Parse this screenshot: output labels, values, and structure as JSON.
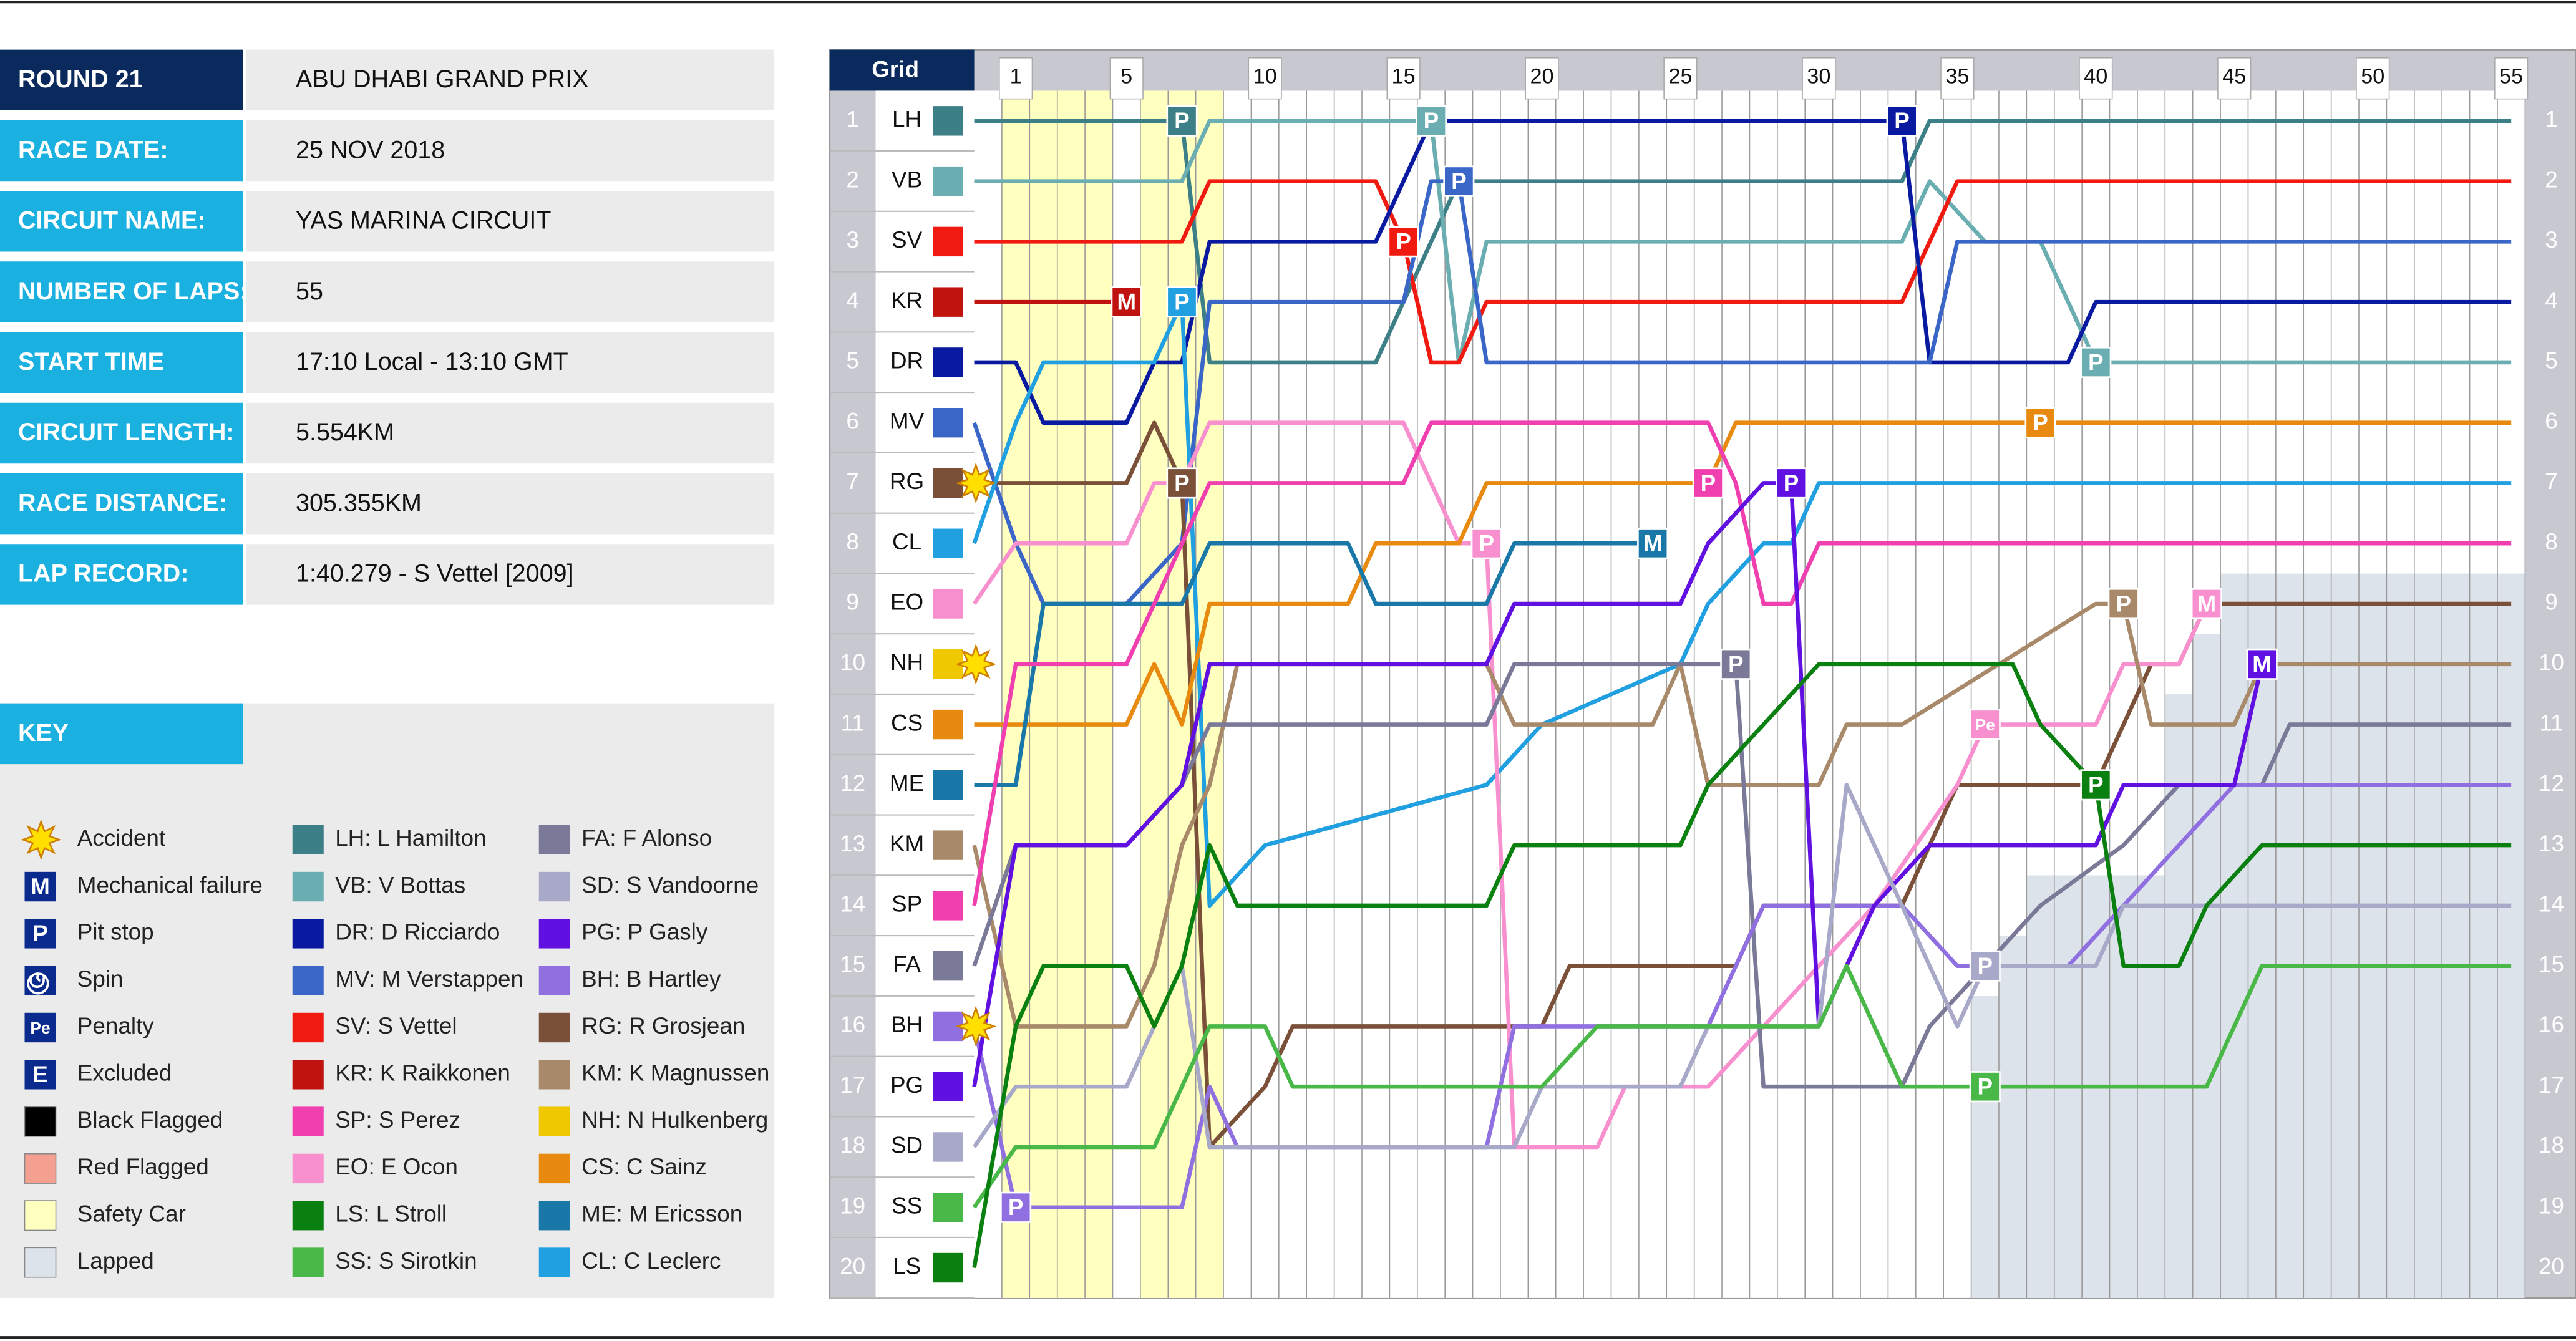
{
  "info": [
    {
      "label": "ROUND 21",
      "value": "ABU DHABI GRAND PRIX"
    },
    {
      "label": "RACE DATE:",
      "value": "25 NOV 2018"
    },
    {
      "label": "CIRCUIT NAME:",
      "value": "YAS MARINA CIRCUIT"
    },
    {
      "label": "NUMBER OF LAPS:",
      "value": "55"
    },
    {
      "label": "START TIME",
      "value": "17:10 Local - 13:10 GMT"
    },
    {
      "label": "CIRCUIT LENGTH:",
      "value": "5.554KM"
    },
    {
      "label": "RACE DISTANCE:",
      "value": "305.355KM"
    },
    {
      "label": "LAP RECORD:",
      "value": "1:40.279 - S Vettel [2009]"
    }
  ],
  "key": {
    "title": "KEY",
    "items": [
      {
        "label": "Accident"
      },
      {
        "symbol": "M",
        "label": "Mechanical failure"
      },
      {
        "symbol": "P",
        "label": "Pit stop"
      },
      {
        "label": "Spin"
      },
      {
        "symbol": "Pe",
        "label": "Penalty"
      },
      {
        "symbol": "E",
        "label": "Excluded"
      },
      {
        "label": "Black Flagged"
      },
      {
        "label": "Red Flagged"
      },
      {
        "label": "Safety Car"
      },
      {
        "label": "Lapped"
      }
    ]
  },
  "chart_data": {
    "type": "line",
    "grid_title": "Grid",
    "xlim": [
      -0.5,
      55.5
    ],
    "xticks": [
      1,
      5,
      10,
      15,
      20,
      25,
      30,
      35,
      40,
      45,
      50,
      55
    ],
    "ylim": [
      20.5,
      0.5
    ],
    "yticks": [
      1,
      2,
      3,
      4,
      5,
      6,
      7,
      8,
      9,
      10,
      11,
      12,
      13,
      14,
      15,
      16,
      17,
      18,
      19,
      20
    ],
    "safety_car": [
      [
        0.5,
        4.5
      ],
      [
        5.5,
        8.5
      ]
    ],
    "lapped": {
      "x": [
        35.5,
        36.5,
        37.5,
        42.5,
        43.5,
        44.5
      ],
      "values": [
        15.5,
        14.5,
        13.5,
        10.5,
        9.5,
        8.5
      ]
    },
    "series": [
      {
        "name": "LH",
        "label": "LH: L Hamilton",
        "color": "#3d7f86",
        "x": [
          0,
          7,
          8,
          14,
          15,
          16,
          17,
          33,
          34,
          55
        ],
        "values": [
          1,
          1,
          5,
          5,
          4,
          3,
          2,
          2,
          1,
          1
        ]
      },
      {
        "name": "VB",
        "label": "VB: V Bottas",
        "color": "#6aaeb2",
        "x": [
          0,
          7,
          8,
          16,
          17,
          18,
          33,
          34,
          36,
          38,
          39,
          40,
          55
        ],
        "values": [
          2,
          2,
          1,
          1,
          5,
          3,
          3,
          2,
          3,
          3,
          4,
          5,
          5
        ]
      },
      {
        "name": "SV",
        "label": "SV: S Vettel",
        "color": "#f01a10",
        "x": [
          0,
          7,
          8,
          14,
          15,
          16,
          17,
          18,
          33,
          34,
          35,
          55
        ],
        "values": [
          3,
          3,
          2,
          2,
          3,
          5,
          5,
          4,
          4,
          3,
          2,
          2
        ]
      },
      {
        "name": "KR",
        "label": "KR: K Raikkonen",
        "color": "#c0120e",
        "x": [
          0,
          5
        ],
        "values": [
          4,
          4
        ]
      },
      {
        "name": "DR",
        "label": "DR: D Ricciardo",
        "color": "#0a1aa0",
        "x": [
          0,
          1,
          2,
          5,
          6,
          7,
          8,
          14,
          15,
          16,
          33,
          34,
          39,
          40,
          55
        ],
        "values": [
          5,
          5,
          6,
          6,
          5,
          5,
          3,
          3,
          2,
          1,
          1,
          5,
          5,
          4,
          4
        ]
      },
      {
        "name": "MV",
        "label": "MV: M Verstappen",
        "color": "#3a66c8",
        "x": [
          0,
          1,
          2,
          5,
          7,
          8,
          15,
          16,
          17,
          18,
          34,
          35,
          55
        ],
        "values": [
          6,
          8,
          9,
          9,
          8,
          4,
          4,
          2,
          2,
          5,
          5,
          3,
          3
        ]
      },
      {
        "name": "RG",
        "label": "RG: R Grosjean",
        "color": "#7a5038",
        "x": [
          0,
          5,
          6,
          7,
          8,
          10,
          11,
          20,
          21,
          27,
          28,
          33,
          34,
          35,
          40,
          41,
          42,
          43,
          44,
          55
        ],
        "values": [
          7,
          7,
          6,
          7,
          18,
          17,
          16,
          16,
          15,
          15,
          14,
          14,
          13,
          12,
          12,
          11,
          10,
          10,
          9,
          9
        ]
      },
      {
        "name": "CL",
        "label": "CL: C Leclerc",
        "color": "#20a0e0",
        "x": [
          0,
          1,
          2,
          6,
          7,
          8,
          10,
          18,
          20,
          25,
          26,
          28,
          29,
          30,
          55
        ],
        "values": [
          8,
          6,
          5,
          5,
          4,
          14,
          13,
          12,
          11,
          10,
          9,
          8,
          8,
          7,
          7
        ]
      },
      {
        "name": "EO",
        "label": "EO: E Ocon",
        "color": "#f890d0",
        "x": [
          0,
          1,
          5,
          6,
          7,
          8,
          15,
          16,
          17,
          18,
          19,
          22,
          23,
          26,
          28,
          30,
          32,
          35,
          36,
          40,
          41,
          43,
          44
        ],
        "values": [
          9,
          8,
          8,
          7,
          7,
          6,
          6,
          7,
          8,
          8,
          18,
          18,
          17,
          17,
          16,
          15,
          14,
          12,
          11,
          11,
          10,
          10,
          9
        ]
      },
      {
        "name": "NH",
        "label": "NH: N Hulkenberg",
        "color": "#f0c800",
        "x": [
          0
        ],
        "values": [
          10
        ]
      },
      {
        "name": "CS",
        "label": "CS: C Sainz",
        "color": "#e88a10",
        "x": [
          0,
          5,
          6,
          7,
          8,
          13,
          14,
          17,
          18,
          26,
          27,
          55
        ],
        "values": [
          11,
          11,
          10,
          11,
          9,
          9,
          8,
          8,
          7,
          7,
          6,
          6
        ]
      },
      {
        "name": "ME",
        "label": "ME: M Ericsson",
        "color": "#1a78a8",
        "x": [
          0,
          1,
          2,
          7,
          8,
          13,
          14,
          18,
          19,
          24
        ],
        "values": [
          12,
          12,
          9,
          9,
          8,
          8,
          9,
          9,
          8,
          8
        ]
      },
      {
        "name": "KM",
        "label": "KM: K Magnussen",
        "color": "#a88a6a",
        "x": [
          0,
          1,
          5,
          6,
          7,
          8,
          9,
          18,
          19,
          24,
          25,
          26,
          30,
          31,
          33,
          40,
          41,
          42,
          45,
          46,
          55
        ],
        "values": [
          13,
          16,
          16,
          15,
          13,
          12,
          10,
          10,
          11,
          11,
          10,
          12,
          12,
          11,
          11,
          9,
          9,
          11,
          11,
          10,
          10
        ]
      },
      {
        "name": "SP",
        "label": "SP: S Perez",
        "color": "#f040b0",
        "x": [
          0,
          1,
          5,
          6,
          7,
          8,
          15,
          16,
          26,
          27,
          28,
          29,
          30,
          55
        ],
        "values": [
          14,
          10,
          10,
          9,
          8,
          7,
          7,
          6,
          6,
          7,
          9,
          9,
          8,
          8
        ]
      },
      {
        "name": "FA",
        "label": "FA: F Alonso",
        "color": "#7a7a98",
        "x": [
          0,
          1,
          5,
          7,
          8,
          18,
          19,
          26,
          27,
          28,
          33,
          34,
          36,
          38,
          41,
          43,
          46,
          47,
          55
        ],
        "values": [
          15,
          13,
          13,
          12,
          11,
          11,
          10,
          10,
          10,
          17,
          17,
          16,
          15,
          14,
          13,
          12,
          12,
          11,
          11
        ]
      },
      {
        "name": "BH",
        "label": "BH: B Hartley",
        "color": "#9070e0",
        "x": [
          0,
          1,
          7,
          8,
          9,
          18,
          19,
          26,
          28,
          33,
          35,
          39,
          41,
          43,
          45,
          55
        ],
        "values": [
          16,
          19,
          19,
          17,
          18,
          18,
          16,
          16,
          14,
          14,
          15,
          15,
          14,
          13,
          12,
          12
        ]
      },
      {
        "name": "PG",
        "label": "PG: P Gasly",
        "color": "#6010e0",
        "x": [
          0,
          1,
          5,
          7,
          8,
          18,
          19,
          25,
          26,
          28,
          29,
          30,
          32,
          34,
          40,
          41,
          45,
          46
        ],
        "values": [
          17,
          13,
          13,
          12,
          10,
          10,
          9,
          9,
          8,
          7,
          7,
          16,
          14,
          13,
          13,
          12,
          12,
          10
        ]
      },
      {
        "name": "SD",
        "label": "SD: S Vandoorne",
        "color": "#a8a8c8",
        "x": [
          0,
          1,
          5,
          7,
          8,
          19,
          20,
          25,
          26,
          30,
          31,
          32,
          33,
          34,
          35,
          36,
          40,
          41,
          55
        ],
        "values": [
          18,
          17,
          17,
          15,
          18,
          18,
          17,
          17,
          16,
          16,
          12,
          13,
          14,
          15,
          16,
          15,
          15,
          14,
          14
        ]
      },
      {
        "name": "SS",
        "label": "SS: S Sirotkin",
        "color": "#4ab848",
        "x": [
          0,
          1,
          6,
          7,
          8,
          10,
          11,
          20,
          22,
          30,
          31,
          32,
          33,
          36,
          44,
          46,
          55
        ],
        "values": [
          19,
          18,
          18,
          17,
          16,
          16,
          17,
          17,
          16,
          16,
          15,
          16,
          17,
          17,
          17,
          15,
          15
        ]
      },
      {
        "name": "LS",
        "label": "LS: L Stroll",
        "color": "#0a8010",
        "x": [
          0,
          1,
          2,
          5,
          6,
          7,
          8,
          9,
          18,
          19,
          25,
          26,
          28,
          30,
          37,
          38,
          40,
          41,
          43,
          44,
          46,
          55
        ],
        "values": [
          20,
          16,
          15,
          15,
          16,
          15,
          13,
          14,
          14,
          13,
          13,
          12,
          11,
          10,
          10,
          11,
          12,
          15,
          15,
          14,
          13,
          13
        ]
      }
    ],
    "events": [
      {
        "lap": 7,
        "position": 1,
        "label": "P",
        "color": "#3d7f86"
      },
      {
        "lap": 16,
        "position": 1,
        "label": "P",
        "color": "#6aaeb2"
      },
      {
        "lap": 33,
        "position": 1,
        "label": "P",
        "color": "#0a1aa0"
      },
      {
        "lap": 17,
        "position": 2,
        "label": "P",
        "color": "#3a66c8"
      },
      {
        "lap": 15,
        "position": 3,
        "label": "P",
        "color": "#f01a10"
      },
      {
        "lap": 5,
        "position": 4,
        "label": "M",
        "color": "#c0120e"
      },
      {
        "lap": 7,
        "position": 4,
        "label": "P",
        "color": "#20a0e0"
      },
      {
        "lap": 40,
        "position": 5,
        "label": "P",
        "color": "#6aaeb2"
      },
      {
        "lap": 38,
        "position": 6,
        "label": "P",
        "color": "#e88a10"
      },
      {
        "lap": 7,
        "position": 7,
        "label": "P",
        "color": "#7a5038"
      },
      {
        "lap": 26,
        "position": 7,
        "label": "P",
        "color": "#f040b0"
      },
      {
        "lap": 29,
        "position": 7,
        "label": "P",
        "color": "#6010e0"
      },
      {
        "lap": 18,
        "position": 8,
        "label": "P",
        "color": "#f890d0"
      },
      {
        "lap": 24,
        "position": 8,
        "label": "M",
        "color": "#1a78a8"
      },
      {
        "lap": 41,
        "position": 9,
        "label": "P",
        "color": "#a88a6a"
      },
      {
        "lap": 44,
        "position": 9,
        "label": "M",
        "color": "#f890d0"
      },
      {
        "lap": 27,
        "position": 10,
        "label": "P",
        "color": "#7a7a98"
      },
      {
        "lap": 46,
        "position": 10,
        "label": "M",
        "color": "#6010e0"
      },
      {
        "lap": 36,
        "position": 11,
        "label": "Pe",
        "color": "#f890d0"
      },
      {
        "lap": 40,
        "position": 12,
        "label": "P",
        "color": "#0a8010"
      },
      {
        "lap": 36,
        "position": 15,
        "label": "P",
        "color": "#a8a8c8"
      },
      {
        "lap": 36,
        "position": 17,
        "label": "P",
        "color": "#4ab848"
      },
      {
        "lap": 1,
        "position": 19,
        "label": "P",
        "color": "#9070e0"
      }
    ],
    "accidents": [
      {
        "lap": 0,
        "position": 7
      },
      {
        "lap": 0,
        "position": 10
      },
      {
        "lap": 0,
        "position": 16
      }
    ]
  }
}
